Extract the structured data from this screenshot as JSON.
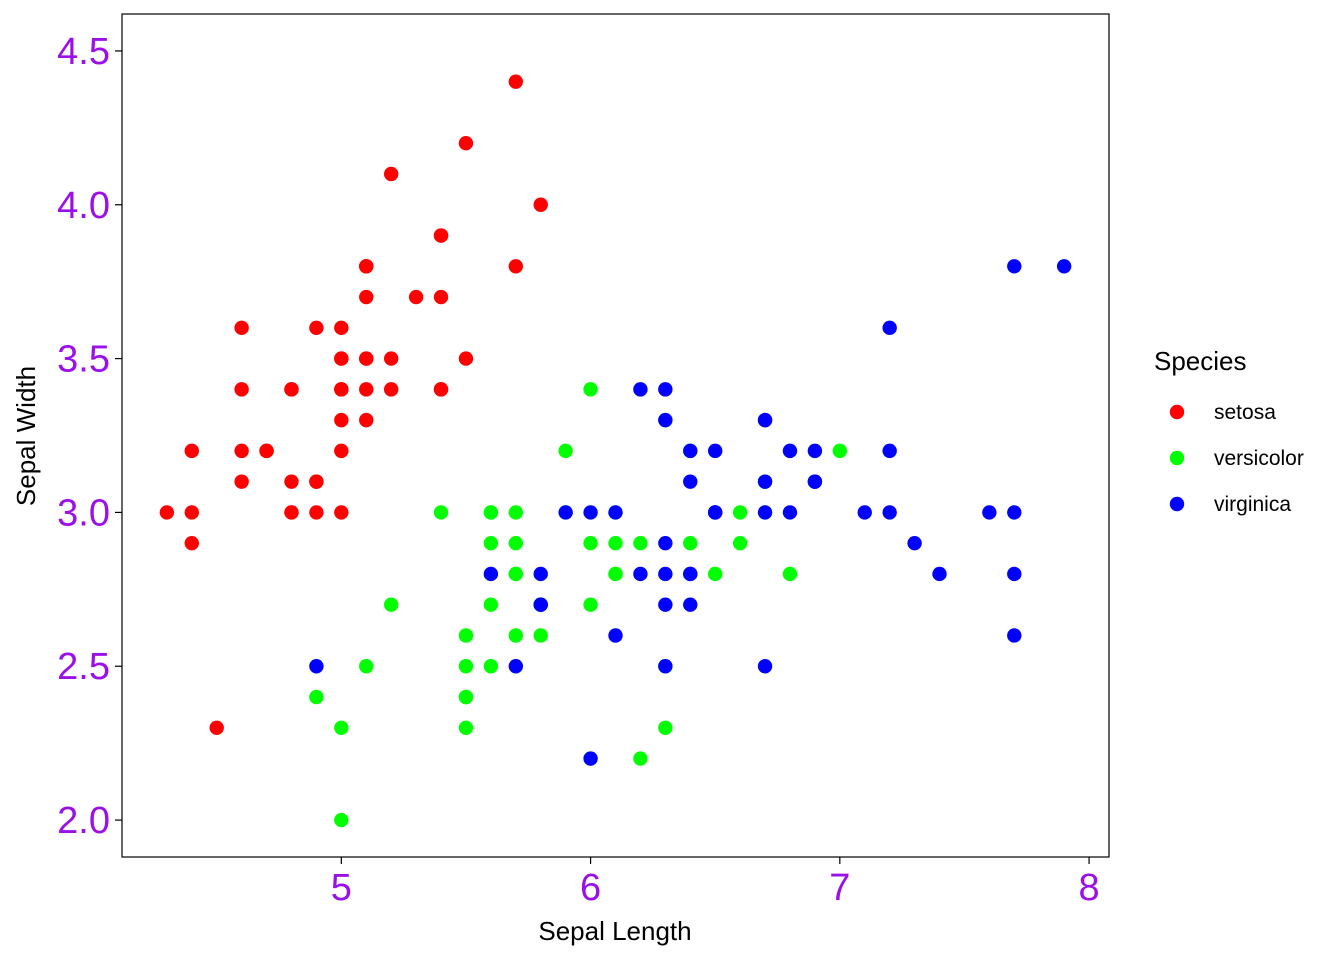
{
  "chart_data": {
    "type": "scatter",
    "title": "",
    "xlabel": "Sepal Length",
    "ylabel": "Sepal Width",
    "xlim": [
      4.12,
      8.08
    ],
    "ylim": [
      1.88,
      4.62
    ],
    "x_ticks": [
      5,
      6,
      7,
      8
    ],
    "x_tick_labels": [
      "5",
      "6",
      "7",
      "8"
    ],
    "y_ticks": [
      2.0,
      2.5,
      3.0,
      3.5,
      4.0,
      4.5
    ],
    "y_tick_labels": [
      "2.0",
      "2.5",
      "3.0",
      "3.5",
      "4.0",
      "4.5"
    ],
    "tick_label_color": "#9B10E8",
    "grid": false,
    "legend": {
      "title": "Species",
      "position": "right"
    },
    "series": [
      {
        "name": "setosa",
        "color": "#FF0000",
        "points": [
          [
            5.1,
            3.5
          ],
          [
            4.9,
            3.0
          ],
          [
            4.7,
            3.2
          ],
          [
            4.6,
            3.1
          ],
          [
            5.0,
            3.6
          ],
          [
            5.4,
            3.9
          ],
          [
            4.6,
            3.4
          ],
          [
            5.0,
            3.4
          ],
          [
            4.4,
            2.9
          ],
          [
            4.9,
            3.1
          ],
          [
            5.4,
            3.7
          ],
          [
            4.8,
            3.4
          ],
          [
            4.8,
            3.0
          ],
          [
            4.3,
            3.0
          ],
          [
            5.8,
            4.0
          ],
          [
            5.7,
            4.4
          ],
          [
            5.4,
            3.9
          ],
          [
            5.1,
            3.5
          ],
          [
            5.7,
            3.8
          ],
          [
            5.1,
            3.8
          ],
          [
            5.4,
            3.4
          ],
          [
            5.1,
            3.7
          ],
          [
            4.6,
            3.6
          ],
          [
            5.1,
            3.3
          ],
          [
            4.8,
            3.4
          ],
          [
            5.0,
            3.0
          ],
          [
            5.0,
            3.4
          ],
          [
            5.2,
            3.5
          ],
          [
            5.2,
            3.4
          ],
          [
            4.7,
            3.2
          ],
          [
            4.8,
            3.1
          ],
          [
            5.4,
            3.4
          ],
          [
            5.2,
            4.1
          ],
          [
            5.5,
            4.2
          ],
          [
            4.9,
            3.1
          ],
          [
            5.0,
            3.2
          ],
          [
            5.5,
            3.5
          ],
          [
            4.9,
            3.6
          ],
          [
            4.4,
            3.0
          ],
          [
            5.1,
            3.4
          ],
          [
            5.0,
            3.5
          ],
          [
            4.5,
            2.3
          ],
          [
            4.4,
            3.2
          ],
          [
            5.0,
            3.5
          ],
          [
            5.1,
            3.8
          ],
          [
            4.8,
            3.0
          ],
          [
            5.1,
            3.8
          ],
          [
            4.6,
            3.2
          ],
          [
            5.3,
            3.7
          ],
          [
            5.0,
            3.3
          ]
        ]
      },
      {
        "name": "versicolor",
        "color": "#00FF00",
        "points": [
          [
            7.0,
            3.2
          ],
          [
            6.4,
            3.2
          ],
          [
            6.9,
            3.1
          ],
          [
            5.5,
            2.3
          ],
          [
            6.5,
            2.8
          ],
          [
            5.7,
            2.8
          ],
          [
            6.3,
            3.3
          ],
          [
            4.9,
            2.4
          ],
          [
            6.6,
            2.9
          ],
          [
            5.2,
            2.7
          ],
          [
            5.0,
            2.0
          ],
          [
            5.9,
            3.0
          ],
          [
            6.0,
            2.2
          ],
          [
            6.1,
            2.9
          ],
          [
            5.6,
            2.9
          ],
          [
            6.7,
            3.1
          ],
          [
            5.6,
            3.0
          ],
          [
            5.8,
            2.7
          ],
          [
            6.2,
            2.2
          ],
          [
            5.6,
            2.5
          ],
          [
            5.9,
            3.2
          ],
          [
            6.1,
            2.8
          ],
          [
            6.3,
            2.5
          ],
          [
            6.1,
            2.8
          ],
          [
            6.4,
            2.9
          ],
          [
            6.6,
            3.0
          ],
          [
            6.8,
            2.8
          ],
          [
            6.7,
            3.0
          ],
          [
            6.0,
            2.9
          ],
          [
            5.7,
            2.6
          ],
          [
            5.5,
            2.4
          ],
          [
            5.5,
            2.4
          ],
          [
            5.8,
            2.7
          ],
          [
            6.0,
            2.7
          ],
          [
            5.4,
            3.0
          ],
          [
            6.0,
            3.4
          ],
          [
            6.7,
            3.1
          ],
          [
            6.3,
            2.3
          ],
          [
            5.6,
            3.0
          ],
          [
            5.5,
            2.5
          ],
          [
            5.5,
            2.6
          ],
          [
            6.1,
            3.0
          ],
          [
            5.8,
            2.6
          ],
          [
            5.0,
            2.3
          ],
          [
            5.6,
            2.7
          ],
          [
            5.7,
            3.0
          ],
          [
            5.7,
            2.9
          ],
          [
            6.2,
            2.9
          ],
          [
            5.1,
            2.5
          ],
          [
            5.7,
            2.8
          ]
        ]
      },
      {
        "name": "virginica",
        "color": "#0000FF",
        "points": [
          [
            6.3,
            3.3
          ],
          [
            5.8,
            2.7
          ],
          [
            7.1,
            3.0
          ],
          [
            6.3,
            2.9
          ],
          [
            6.5,
            3.0
          ],
          [
            7.6,
            3.0
          ],
          [
            4.9,
            2.5
          ],
          [
            7.3,
            2.9
          ],
          [
            6.7,
            2.5
          ],
          [
            7.2,
            3.6
          ],
          [
            6.5,
            3.2
          ],
          [
            6.4,
            2.7
          ],
          [
            6.8,
            3.0
          ],
          [
            5.7,
            2.5
          ],
          [
            5.8,
            2.8
          ],
          [
            6.4,
            3.2
          ],
          [
            6.5,
            3.0
          ],
          [
            7.7,
            3.8
          ],
          [
            7.7,
            2.6
          ],
          [
            6.0,
            2.2
          ],
          [
            6.9,
            3.2
          ],
          [
            5.6,
            2.8
          ],
          [
            7.7,
            2.8
          ],
          [
            6.3,
            2.7
          ],
          [
            6.7,
            3.3
          ],
          [
            7.2,
            3.2
          ],
          [
            6.2,
            2.8
          ],
          [
            6.1,
            3.0
          ],
          [
            6.4,
            2.8
          ],
          [
            7.2,
            3.0
          ],
          [
            7.4,
            2.8
          ],
          [
            7.9,
            3.8
          ],
          [
            6.4,
            2.8
          ],
          [
            6.3,
            2.8
          ],
          [
            6.1,
            2.6
          ],
          [
            7.7,
            3.0
          ],
          [
            6.3,
            3.4
          ],
          [
            6.4,
            3.1
          ],
          [
            6.0,
            3.0
          ],
          [
            6.9,
            3.1
          ],
          [
            6.7,
            3.1
          ],
          [
            6.9,
            3.1
          ],
          [
            5.8,
            2.7
          ],
          [
            6.8,
            3.2
          ],
          [
            6.7,
            3.3
          ],
          [
            6.7,
            3.0
          ],
          [
            6.3,
            2.5
          ],
          [
            6.5,
            3.0
          ],
          [
            6.2,
            3.4
          ],
          [
            5.9,
            3.0
          ]
        ]
      }
    ]
  }
}
